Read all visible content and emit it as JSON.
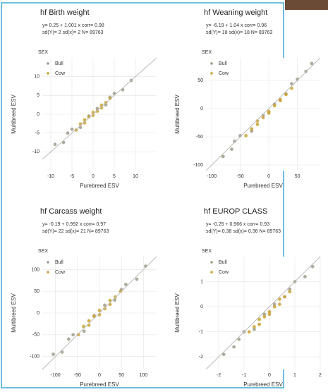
{
  "chart_data": [
    {
      "type": "scatter",
      "title": "hf Birth weight",
      "annotations": [
        "y= 0.25 + 1.001 x  corr= 0.98",
        "sd(Y)= 2 sd(x)= 2 N= 89763"
      ],
      "xlabel": "Purebreed ESV",
      "ylabel": "Multibreed ESV",
      "legend_title": "SEX",
      "xlim": [
        -12,
        15
      ],
      "ylim": [
        -15,
        15
      ],
      "xticks": [
        -10,
        -5,
        0,
        5,
        10
      ],
      "yticks": [
        -10,
        -5,
        0,
        5,
        10
      ],
      "grid": true,
      "series": [
        {
          "name": "Bull",
          "color": "#a09c8c",
          "x": [
            -9,
            -7,
            -5,
            -3,
            -1,
            1,
            3,
            5,
            7,
            9,
            -6,
            4
          ],
          "y": [
            -8,
            -7.5,
            -4,
            -3.5,
            -0.5,
            1.5,
            2.5,
            5.5,
            6.5,
            9,
            -5,
            4.5
          ]
        },
        {
          "name": "Cow",
          "color": "#c9a232",
          "x": [
            -4,
            -3,
            -2,
            -1,
            0,
            1,
            2,
            3,
            4,
            -2,
            0,
            2
          ],
          "y": [
            -4.2,
            -2.6,
            -2.3,
            -0.7,
            0.5,
            0.8,
            2.4,
            3.1,
            4.2,
            -1.5,
            -0.3,
            1.7
          ]
        }
      ]
    },
    {
      "type": "scatter",
      "title": "hf Weaning weight",
      "annotations": [
        "y= -6.19 + 1.04 x  corr= 0.96",
        "sd(Y)= 18 sd(x)= 18 N= 89763"
      ],
      "xlabel": "Purebreed ESV",
      "ylabel": "Multibreed ESV",
      "legend_title": "SEX",
      "xlim": [
        -110,
        90
      ],
      "ylim": [
        -110,
        90
      ],
      "xticks": [
        -100,
        -50,
        0,
        50
      ],
      "yticks": [
        -100,
        -50,
        0,
        50
      ],
      "grid": true,
      "series": [
        {
          "name": "Bull",
          "color": "#a09c8c",
          "x": [
            -80,
            -65,
            -50,
            -30,
            -10,
            10,
            30,
            50,
            65,
            75,
            -60,
            40
          ],
          "y": [
            -85,
            -72,
            -48,
            -40,
            -12,
            8,
            26,
            52,
            66,
            80,
            -58,
            44
          ]
        },
        {
          "name": "Cow",
          "color": "#c9a232",
          "x": [
            -40,
            -30,
            -20,
            -10,
            0,
            10,
            20,
            30,
            40,
            -20,
            0,
            20
          ],
          "y": [
            -48,
            -36,
            -28,
            -16,
            -5,
            5,
            16,
            25,
            36,
            -22,
            -8,
            14
          ]
        }
      ]
    },
    {
      "type": "scatter",
      "title": "hf Carcass weight",
      "annotations": [
        "y= -0.19 + 0.992 x  corr= 0.97",
        "sd(Y)= 22 sd(x)= 21 N= 89763"
      ],
      "xlabel": "Purebreed ESV",
      "ylabel": "Multibreed ESV",
      "legend_title": "SEX",
      "xlim": [
        -130,
        130
      ],
      "ylim": [
        -130,
        130
      ],
      "xticks": [
        -100,
        -50,
        0,
        50,
        100
      ],
      "yticks": [
        -100,
        -50,
        0,
        50,
        100
      ],
      "grid": true,
      "series": [
        {
          "name": "Bull",
          "color": "#a09c8c",
          "x": [
            -105,
            -85,
            -60,
            -35,
            -12,
            12,
            35,
            60,
            85,
            105,
            -70,
            50
          ],
          "y": [
            -95,
            -90,
            -50,
            -42,
            -6,
            18,
            30,
            66,
            78,
            108,
            -60,
            54
          ]
        },
        {
          "name": "Cow",
          "color": "#c9a232",
          "x": [
            -48,
            -36,
            -24,
            -12,
            0,
            12,
            24,
            36,
            48,
            -24,
            0,
            24
          ],
          "y": [
            -50,
            -31,
            -28,
            -8,
            6,
            10,
            29,
            37,
            50,
            -18,
            -4,
            20
          ]
        }
      ]
    },
    {
      "type": "scatter",
      "title": "hf EUROP CLASS",
      "annotations": [
        "y= -0.25 + 0.966 x  corr= 0.93",
        "sd(Y)= 0.38 sd(x)= 0.36 N= 89763"
      ],
      "xlabel": "Purebreed ESV",
      "ylabel": "Multibreed ESV",
      "legend_title": "SEX",
      "xlim": [
        -2.5,
        2
      ],
      "ylim": [
        -2.5,
        2
      ],
      "xticks": [
        -2,
        -1,
        0,
        1,
        2
      ],
      "yticks": [
        -2,
        -1,
        0,
        1
      ],
      "grid": true,
      "series": [
        {
          "name": "Bull",
          "color": "#a09c8c",
          "x": [
            -1.8,
            -1.4,
            -1,
            -0.6,
            -0.2,
            0.2,
            0.6,
            1,
            1.4,
            1.7,
            -1.2,
            0.8
          ],
          "y": [
            -1.9,
            -1.6,
            -1,
            -0.9,
            -0.3,
            0.1,
            0.4,
            1.0,
            1.2,
            1.6,
            -1.3,
            0.7
          ]
        },
        {
          "name": "Cow",
          "color": "#c9a232",
          "x": [
            -0.8,
            -0.6,
            -0.4,
            -0.2,
            0,
            0.2,
            0.4,
            0.6,
            0.8,
            -0.4,
            0,
            0.4
          ],
          "y": [
            -1.0,
            -0.8,
            -0.7,
            -0.4,
            -0.2,
            0,
            0.3,
            0.4,
            0.6,
            -0.5,
            -0.3,
            0.1
          ]
        }
      ]
    }
  ]
}
